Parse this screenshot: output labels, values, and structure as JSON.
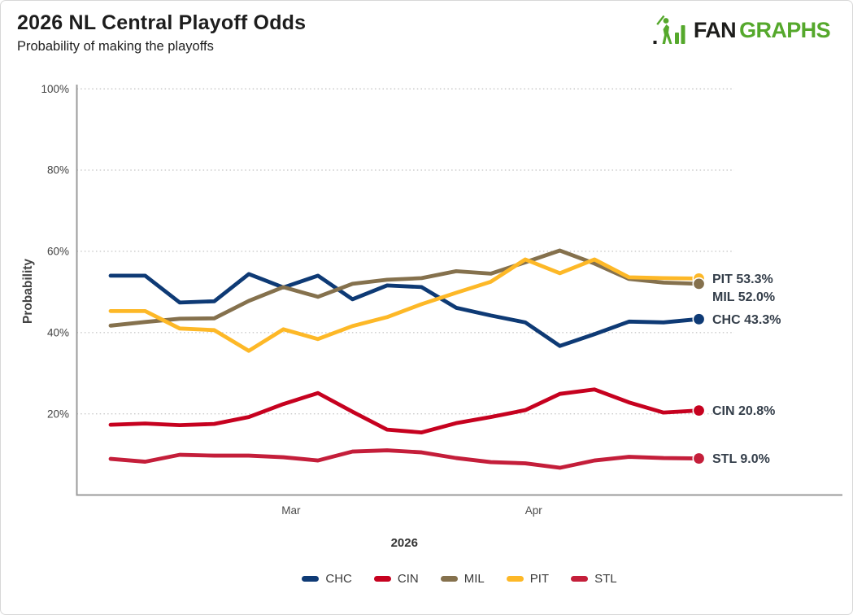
{
  "header": {
    "title": "2026 NL Central Playoff Odds",
    "subtitle": "Probability of making the playoffs"
  },
  "logo": {
    "text_black": "FAN",
    "text_green": "GRAPHS",
    "green": "#55A82C",
    "black": "#1d1d1b"
  },
  "chart_data": {
    "type": "line",
    "title": "2026 NL Central Playoff Odds",
    "subtitle": "Probability of making the playoffs",
    "ylabel": "Probability",
    "xlabel": "2026",
    "ylim": [
      0,
      100
    ],
    "yticks": [
      20,
      40,
      60,
      80,
      100
    ],
    "ytick_suffix": "%",
    "grid": "horizontal-dotted",
    "legend_position": "bottom",
    "x_count": 18,
    "x_months": [
      {
        "label": "Mar",
        "index": 5.22
      },
      {
        "label": "Apr",
        "index": 12.24
      }
    ],
    "series": [
      {
        "name": "CHC",
        "color": "#0E3A75",
        "end_label": "CHC 43.3%",
        "end_value": 43.3,
        "values": [
          54.0,
          54.0,
          47.4,
          47.7,
          54.4,
          51.1,
          54.0,
          48.2,
          51.6,
          51.2,
          46.1,
          44.2,
          42.5,
          36.7,
          39.6,
          42.7,
          42.5,
          43.3
        ]
      },
      {
        "name": "CIN",
        "color": "#C6011F",
        "end_label": "CIN 20.8%",
        "end_value": 20.8,
        "values": [
          17.3,
          17.6,
          17.2,
          17.5,
          19.2,
          22.4,
          25.1,
          20.5,
          16.1,
          15.4,
          17.7,
          19.2,
          20.9,
          24.9,
          26.0,
          22.8,
          20.3,
          20.8
        ]
      },
      {
        "name": "MIL",
        "color": "#85714D",
        "end_label": "MIL 52.0%",
        "end_value": 52.0,
        "values": [
          41.7,
          42.6,
          43.4,
          43.5,
          47.8,
          51.2,
          48.8,
          52.0,
          53.0,
          53.4,
          55.1,
          54.5,
          57.3,
          60.2,
          57.0,
          53.2,
          52.3,
          52.0
        ]
      },
      {
        "name": "PIT",
        "color": "#FDB827",
        "end_label": "PIT 53.3%",
        "end_value": 53.3,
        "values": [
          45.3,
          45.3,
          41.0,
          40.6,
          35.5,
          40.8,
          38.4,
          41.6,
          43.8,
          47.0,
          49.8,
          52.5,
          58.0,
          54.6,
          58.0,
          53.6,
          53.4,
          53.3
        ]
      },
      {
        "name": "STL",
        "color": "#C41E3A",
        "end_label": "STL 9.0%",
        "end_value": 9.0,
        "values": [
          8.9,
          8.2,
          9.9,
          9.7,
          9.7,
          9.3,
          8.5,
          10.7,
          11.0,
          10.5,
          9.1,
          8.1,
          7.8,
          6.7,
          8.5,
          9.4,
          9.1,
          9.0
        ]
      }
    ]
  }
}
